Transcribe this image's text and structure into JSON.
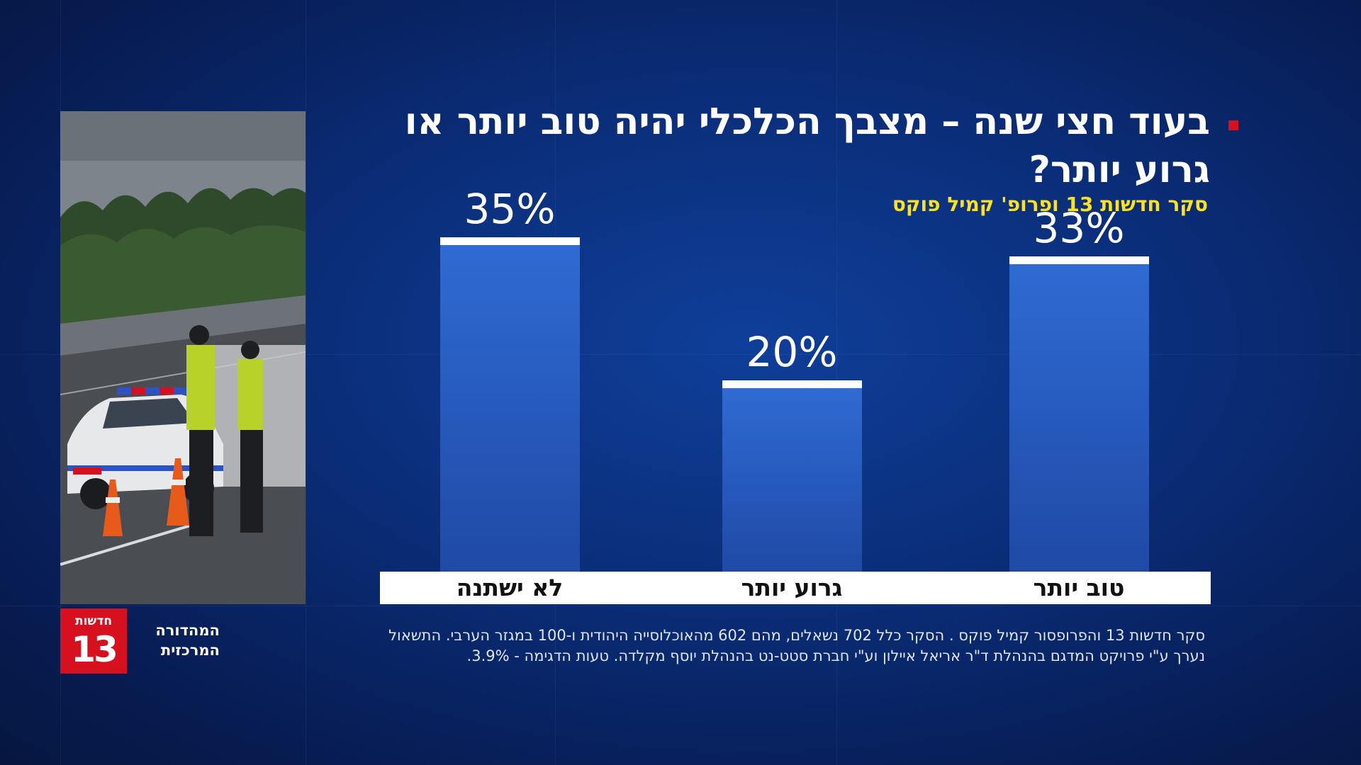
{
  "title": "בעוד חצי שנה – מצבך הכלכלי יהיה טוב יותר או גרוע יותר?",
  "subtitle": "סקר חדשות 13 ופרופ' קמיל פוקס",
  "brand": {
    "small": "חדשות",
    "big": "13",
    "edition": "המהדורה המרכזית",
    "color": "#d6101f"
  },
  "chart_data": {
    "type": "bar",
    "categories": [
      "לא ישתנה",
      "גרוע יותר",
      "טוב יותר"
    ],
    "values": [
      35,
      20,
      33
    ],
    "value_labels": [
      "35%",
      "20%",
      "33%"
    ],
    "ylim": [
      0,
      40
    ],
    "grid": false,
    "bar_color": "#2658bb"
  },
  "footnote": "סקר חדשות 13 והפרופסור קמיל פוקס . הסקר כלל 702 נשאלים, מהם 602 מהאוכלוסייה היהודית ו-100 במגזר הערבי. התשאול נערך ע\"י פרויקט המדגם בהנהלת ד\"ר אריאל איילון וע\"י חברת סטט-נט בהנהלת יוסף מקלדה. טעות הדגימה - 3.9%."
}
